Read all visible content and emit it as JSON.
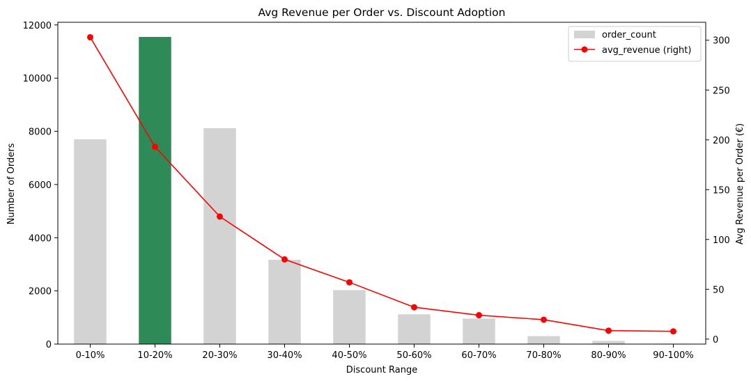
{
  "chart_data": {
    "type": "bar",
    "title": "Avg Revenue per Order vs. Discount Adoption",
    "xlabel": "Discount Range",
    "ylabel": "Number of Orders",
    "ylabel_right": "Avg Revenue per Order (€)",
    "categories": [
      "0-10%",
      "10-20%",
      "20-30%",
      "30-40%",
      "40-50%",
      "50-60%",
      "60-70%",
      "70-80%",
      "80-90%",
      "90-100%"
    ],
    "series": [
      {
        "name": "order_count",
        "type": "bar",
        "axis": "left",
        "color": "#d3d3d3",
        "values": [
          7700,
          11550,
          8120,
          3170,
          2030,
          1120,
          960,
          300,
          120,
          15
        ]
      },
      {
        "name": "avg_revenue (right)",
        "type": "line",
        "axis": "right",
        "color": "#ff0000",
        "marker": "circle",
        "values": [
          303,
          193,
          123,
          80,
          57,
          32,
          24,
          19.5,
          8.5,
          7.8
        ]
      }
    ],
    "highlight": {
      "category": "10-20%",
      "color": "#2e8b57"
    },
    "ylim": [
      0,
      12100
    ],
    "ylim_right": [
      -5,
      318
    ],
    "yticks": [
      0,
      2000,
      4000,
      6000,
      8000,
      10000,
      12000
    ],
    "yticks_right": [
      0,
      50,
      100,
      150,
      200,
      250,
      300
    ],
    "grid": false,
    "legend_position": "top-right"
  }
}
